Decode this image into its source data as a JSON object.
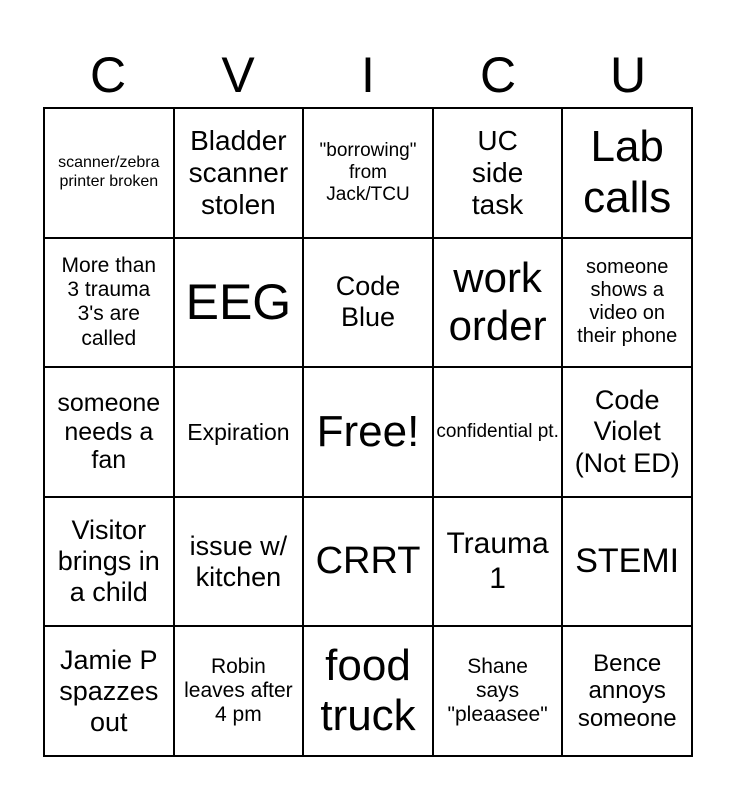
{
  "header": [
    "C",
    "V",
    "I",
    "C",
    "U"
  ],
  "cells": [
    [
      "scanner/zebra printer broken",
      "Bladder scanner stolen",
      "\"borrowing\" from Jack/TCU",
      "UC side task",
      "Lab calls"
    ],
    [
      "More than 3 trauma 3's are called",
      "EEG",
      "Code Blue",
      "work order",
      "someone shows a video on their phone"
    ],
    [
      "someone needs a fan",
      "Expiration",
      "Free!",
      "confidential pt.",
      "Code Violet (Not ED)"
    ],
    [
      "Visitor brings in a child",
      "issue w/ kitchen",
      "CRRT",
      "Trauma 1",
      "STEMI"
    ],
    [
      "Jamie P spazzes out",
      "Robin leaves after 4 pm",
      "food truck",
      "Shane says \"pleaasee\"",
      "Bence annoys someone"
    ]
  ]
}
